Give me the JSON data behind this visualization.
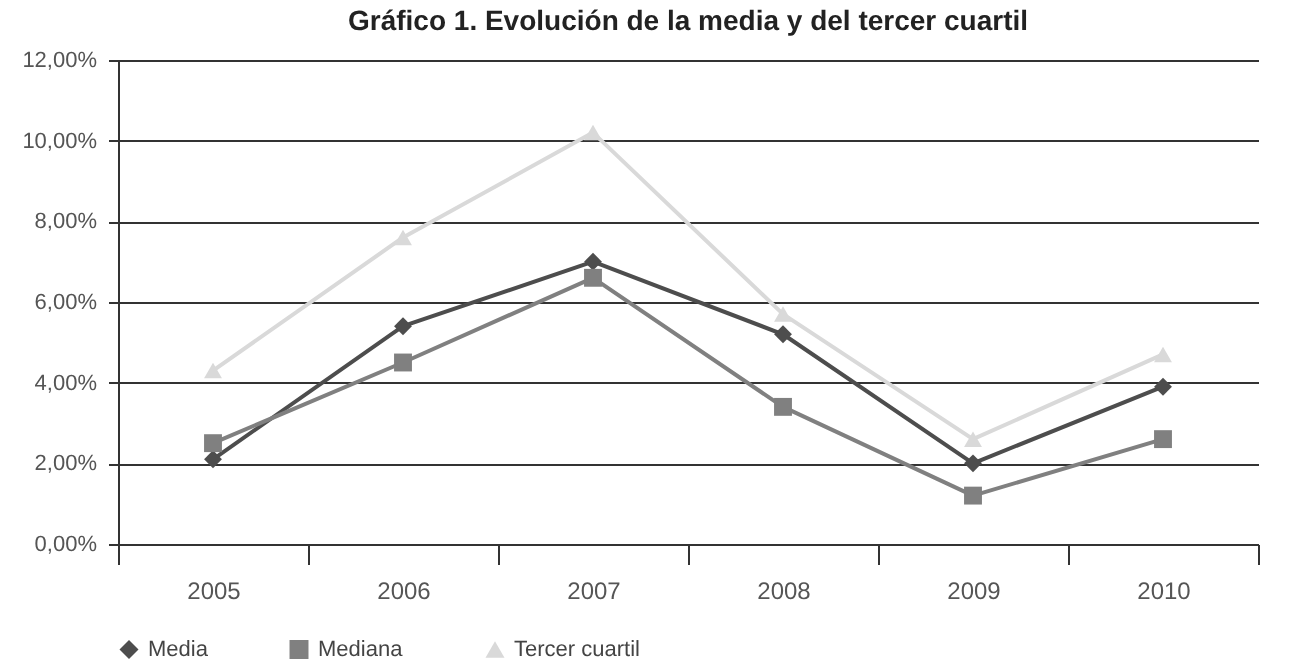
{
  "chart_data": {
    "type": "line",
    "title": "Gráfico 1. Evolución de la media y del tercer cuartil",
    "categories": [
      "2005",
      "2006",
      "2007",
      "2008",
      "2009",
      "2010"
    ],
    "series": [
      {
        "name": "Media",
        "color": "#4d4d4d",
        "marker": "diamond",
        "values": [
          2.1,
          5.4,
          7.0,
          5.2,
          2.0,
          3.9
        ]
      },
      {
        "name": "Mediana",
        "color": "#808080",
        "marker": "square",
        "values": [
          2.5,
          4.5,
          6.6,
          3.4,
          1.2,
          2.6
        ]
      },
      {
        "name": "Tercer cuartil",
        "color": "#d9d9d9",
        "marker": "triangle",
        "values": [
          4.3,
          7.6,
          10.2,
          5.7,
          2.6,
          4.7
        ]
      }
    ],
    "ylim": [
      0,
      12
    ],
    "yticks": [
      {
        "value": 0,
        "label": "0,00%"
      },
      {
        "value": 2,
        "label": "2,00%"
      },
      {
        "value": 4,
        "label": "4,00%"
      },
      {
        "value": 6,
        "label": "6,00%"
      },
      {
        "value": 8,
        "label": "8,00%"
      },
      {
        "value": 10,
        "label": "10,00%"
      },
      {
        "value": 12,
        "label": "12,00%"
      }
    ],
    "grid": "y",
    "legend": "bottom",
    "line_style": "solid"
  }
}
